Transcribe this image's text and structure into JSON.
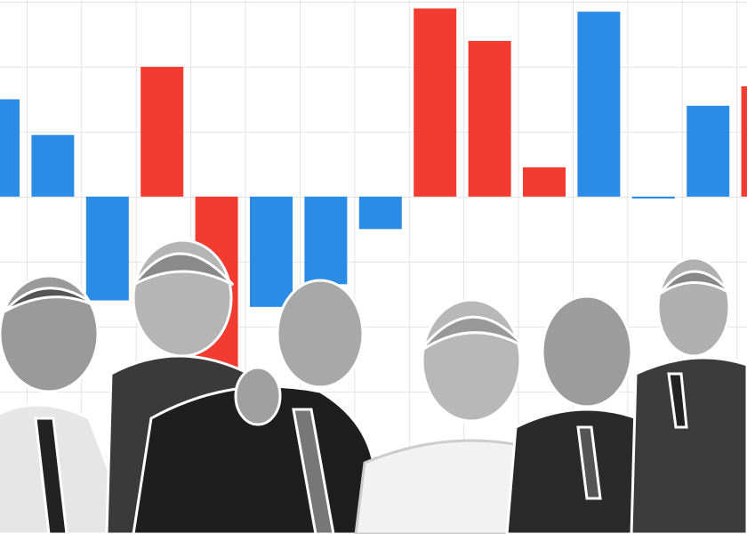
{
  "chart_data": {
    "type": "bar",
    "values": [
      1.5,
      0.95,
      -1.6,
      2.0,
      -2.65,
      -1.7,
      -1.35,
      -0.5,
      2.9,
      2.4,
      0.45,
      2.85,
      -0.03,
      1.4,
      1.7
    ],
    "colors": [
      "#2b8ce6",
      "#2b8ce6",
      "#2b8ce6",
      "#f23c32",
      "#f23c32",
      "#2b8ce6",
      "#2b8ce6",
      "#2b8ce6",
      "#f23c32",
      "#f23c32",
      "#f23c32",
      "#2b8ce6",
      "#2b8ce6",
      "#2b8ce6",
      "#f23c32"
    ],
    "ylim": [
      -5.2,
      3.03
    ]
  }
}
